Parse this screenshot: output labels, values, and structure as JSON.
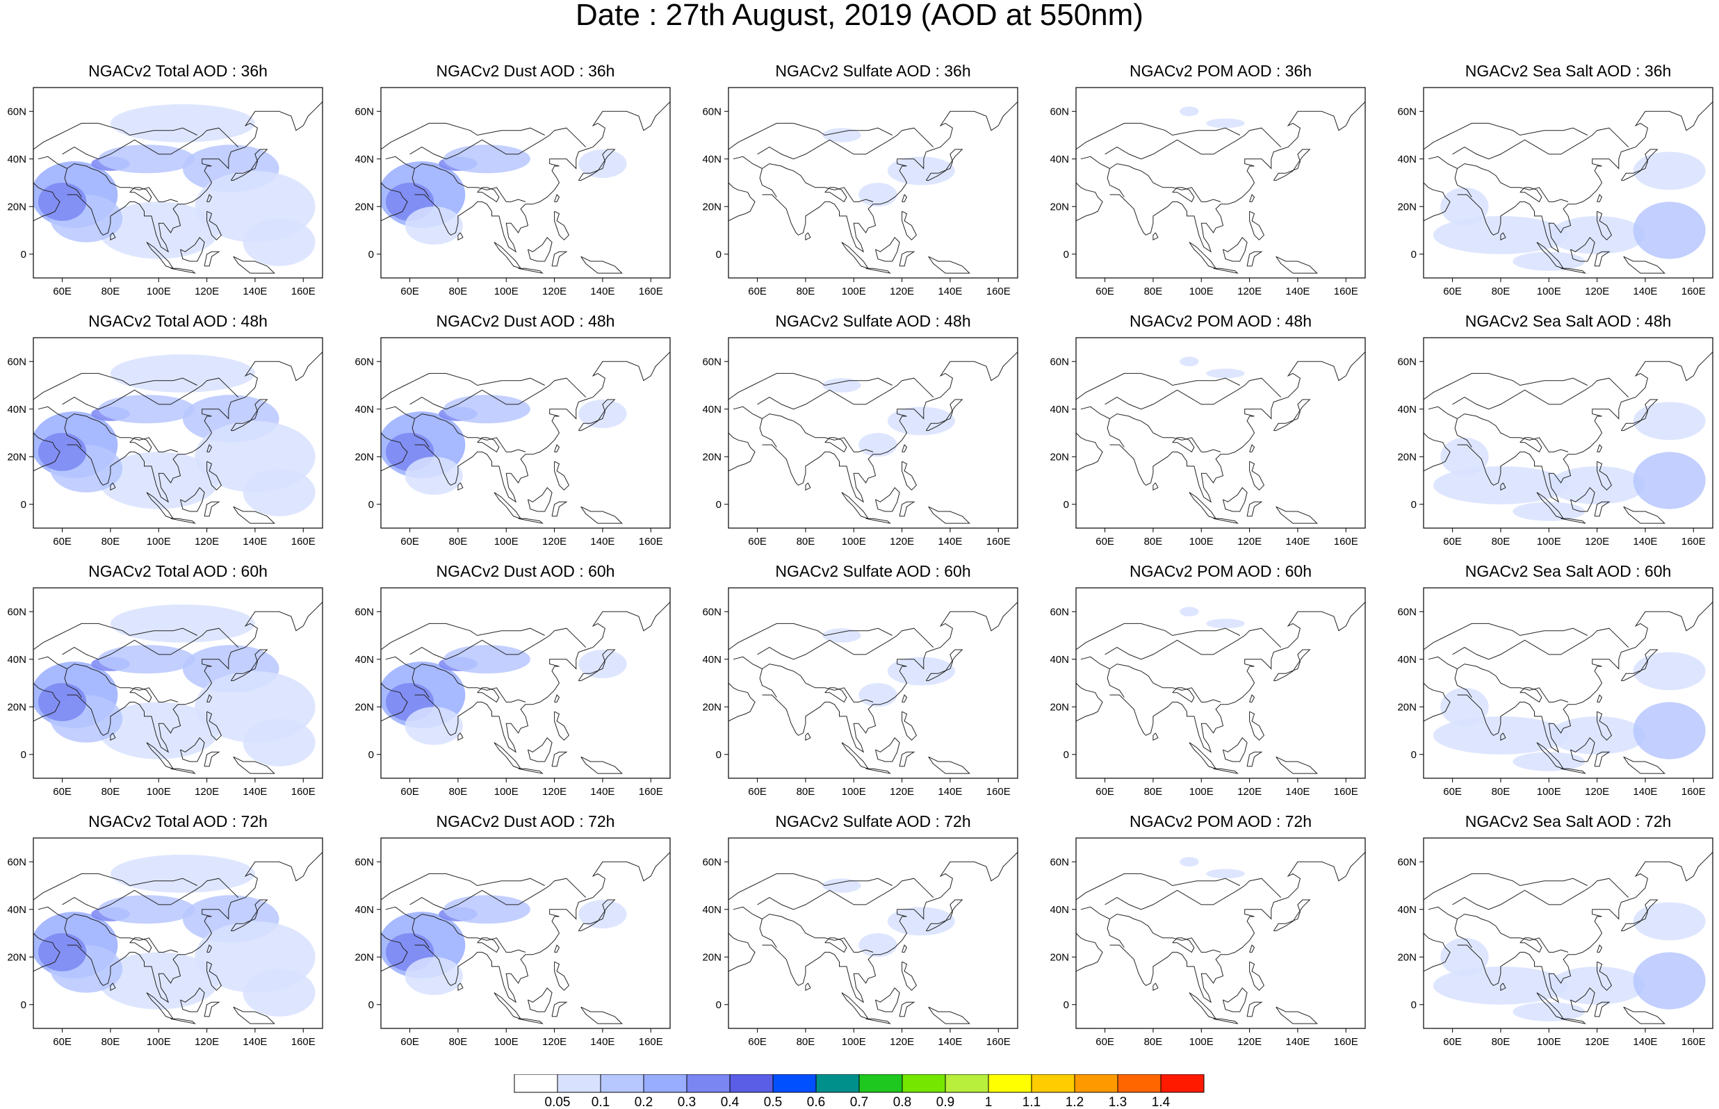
{
  "title": "Date : 27th August, 2019 (AOD at 550nm)",
  "rows": [
    {
      "hour": "36h",
      "panels": [
        "NGACv2 Total AOD : 36h",
        "NGACv2 Dust AOD : 36h",
        "NGACv2 Sulfate AOD : 36h",
        "NGACv2 POM AOD : 36h",
        "NGACv2 Sea Salt AOD : 36h"
      ]
    },
    {
      "hour": "48h",
      "panels": [
        "NGACv2 Total AOD : 48h",
        "NGACv2 Dust AOD : 48h",
        "NGACv2 Sulfate AOD : 48h",
        "NGACv2 POM AOD : 48h",
        "NGACv2 Sea Salt AOD : 48h"
      ]
    },
    {
      "hour": "60h",
      "panels": [
        "NGACv2 Total AOD : 60h",
        "NGACv2 Dust AOD : 60h",
        "NGACv2 Sulfate AOD : 60h",
        "NGACv2 POM AOD : 60h",
        "NGACv2 Sea Salt AOD : 60h"
      ]
    },
    {
      "hour": "72h",
      "panels": [
        "NGACv2 Total AOD : 72h",
        "NGACv2 Dust AOD : 72h",
        "NGACv2 Sulfate AOD : 72h",
        "NGACv2 POM AOD : 72h",
        "NGACv2 Sea Salt  AOD : 72h"
      ]
    }
  ],
  "map": {
    "y_ticks": [
      "60N",
      "40N",
      "20N",
      "0"
    ],
    "x_ticks": [
      "60E",
      "80E",
      "100E",
      "120E",
      "140E",
      "160E"
    ]
  },
  "colorbar": {
    "labels": [
      "0.05",
      "0.1",
      "0.2",
      "0.3",
      "0.4",
      "0.5",
      "0.6",
      "0.7",
      "0.8",
      "0.9",
      "1",
      "1.1",
      "1.2",
      "1.3",
      "1.4"
    ],
    "colors": [
      "#ffffff",
      "#d8e2ff",
      "#b7c7ff",
      "#98adff",
      "#7a86f2",
      "#5a5ee6",
      "#0050ff",
      "#00908c",
      "#1ec81e",
      "#74e600",
      "#b8ee3c",
      "#ffff00",
      "#ffcc00",
      "#ff9900",
      "#ff6600",
      "#ff1a00"
    ]
  }
}
